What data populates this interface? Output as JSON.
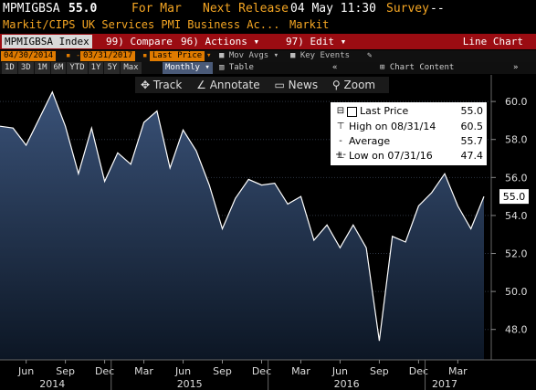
{
  "header": {
    "ticker": "MPMIGBSA",
    "last": "55.0",
    "for_label": "For Mar",
    "next_release_label": "Next Release",
    "next_release_date": "04 May 11:30",
    "survey_label": "Survey",
    "survey_value": "--",
    "description": "Markit/CIPS UK Services PMI Business Ac...",
    "source": "Markit"
  },
  "command_bar": {
    "security": "MPMIGBSA Index",
    "compare_num": "99",
    "compare_label": "Compare",
    "actions_num": "96",
    "actions_label": "Actions",
    "edit_num": "97",
    "edit_label": "Edit",
    "chart_type": "Line Chart"
  },
  "settings": {
    "start_date": "04/30/2014",
    "end_date": "03/31/2017",
    "field": "Last Price",
    "mov_avgs": "Mov Avgs",
    "key_events": "Key Events",
    "chart_content": "Chart Content"
  },
  "periods": [
    "1D",
    "3D",
    "1M",
    "6M",
    "YTD",
    "1Y",
    "5Y",
    "Max"
  ],
  "frequency": "Monthly",
  "table_label": "Table",
  "toolbar": {
    "track": "Track",
    "annotate": "Annotate",
    "news": "News",
    "zoom": "Zoom"
  },
  "legend": {
    "last_price_label": "Last Price",
    "last_price_value": "55.0",
    "high_label": "High on 08/31/14",
    "high_value": "60.5",
    "average_label": "Average",
    "average_value": "55.7",
    "low_label": "Low on 07/31/16",
    "low_value": "47.4"
  },
  "colors": {
    "line": "#ffffff",
    "area_top": "#3a5278",
    "area_bottom": "#0c1624",
    "accent_orange": "#f5a623",
    "command_red": "#9b0c12"
  },
  "chart_data": {
    "type": "area",
    "series": [
      {
        "values": [
          58.7,
          58.6,
          57.7,
          59.1,
          60.5,
          58.7,
          56.2,
          58.6,
          55.8,
          57.3,
          56.7,
          58.9,
          59.5,
          56.5,
          58.5,
          57.4,
          55.6,
          53.3,
          54.9,
          55.9,
          55.6,
          55.7,
          54.6,
          55.0,
          52.7,
          53.5,
          52.3,
          53.5,
          52.3,
          47.4,
          52.9,
          52.6,
          54.5,
          55.2,
          56.2,
          54.5,
          53.3,
          55.0
        ]
      }
    ],
    "x_tick_labels": [
      "Jun",
      "Sep",
      "Dec",
      "Mar",
      "Jun",
      "Sep",
      "Dec",
      "Mar",
      "Jun",
      "Sep",
      "Dec",
      "Mar"
    ],
    "x_tick_months": [
      "2014-06",
      "2014-09",
      "2014-12",
      "2015-03",
      "2015-06",
      "2015-09",
      "2015-12",
      "2016-03",
      "2016-06",
      "2016-09",
      "2016-12",
      "2017-03"
    ],
    "year_labels": [
      "2014",
      "2015",
      "2016",
      "2017"
    ],
    "y_ticks": [
      "48.0",
      "50.0",
      "52.0",
      "54.0",
      "56.0",
      "58.0",
      "60.0"
    ],
    "ylim": [
      46.4,
      61.4
    ],
    "last_value_label": "55.0"
  }
}
